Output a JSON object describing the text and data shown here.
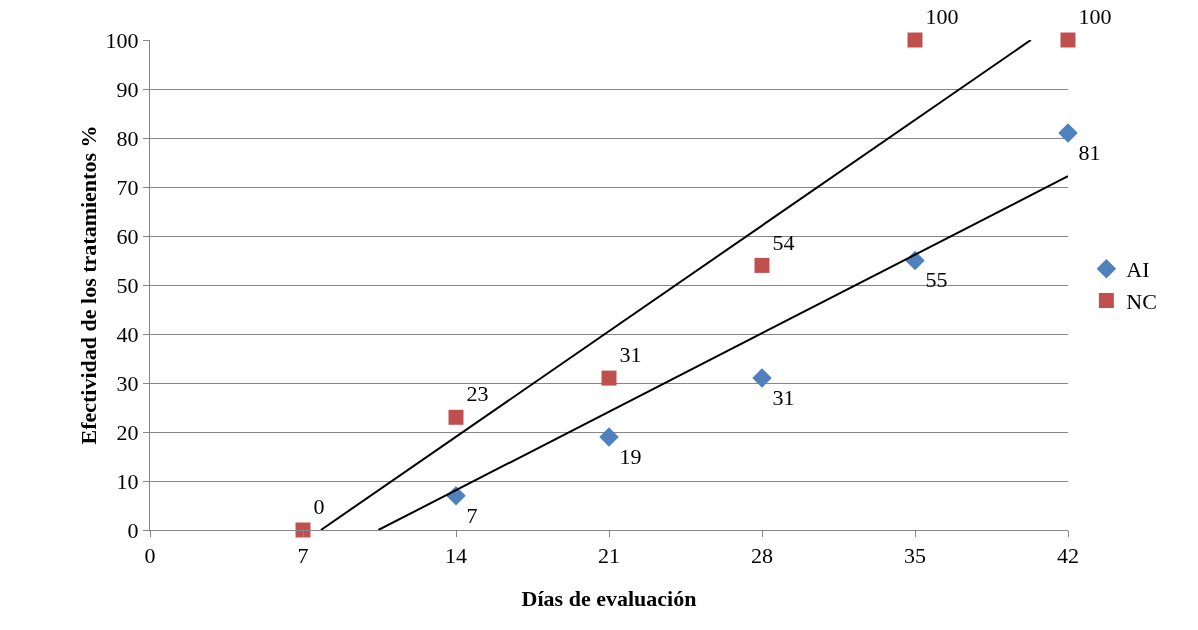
{
  "chart_data": {
    "type": "scatter",
    "xlabel": "Días de evaluación",
    "ylabel": "Efectividad de los tratamientos %",
    "xlim": [
      0,
      42
    ],
    "xticks": [
      0,
      7,
      14,
      21,
      28,
      35,
      42
    ],
    "ylim": [
      0,
      100
    ],
    "yticks": [
      0,
      10,
      20,
      30,
      40,
      50,
      60,
      70,
      80,
      90,
      100
    ],
    "grid": "y",
    "legend": "right",
    "series": [
      {
        "name": "AI",
        "color": "#4f81bd",
        "marker": "diamond",
        "x": [
          14,
          21,
          28,
          35,
          42
        ],
        "values": [
          7,
          19,
          31,
          55,
          81
        ],
        "value_labels": [
          "7",
          "19",
          "31",
          "55",
          "81"
        ]
      },
      {
        "name": "NC",
        "color": "#c0504d",
        "marker": "square",
        "x": [
          7,
          14,
          21,
          28,
          35,
          42
        ],
        "values": [
          0,
          23,
          31,
          54,
          100,
          100
        ],
        "value_labels": [
          "0",
          "23",
          "31",
          "54",
          "100",
          "100"
        ]
      },
      {
        "type": "line",
        "color": "#000000",
        "marker": "none",
        "x": [
          7.82,
          40.3
        ],
        "values": [
          0,
          100
        ]
      },
      {
        "type": "line",
        "color": "#000000",
        "marker": "none",
        "x": [
          10.45,
          42
        ],
        "values": [
          0,
          72.2
        ]
      }
    ]
  }
}
